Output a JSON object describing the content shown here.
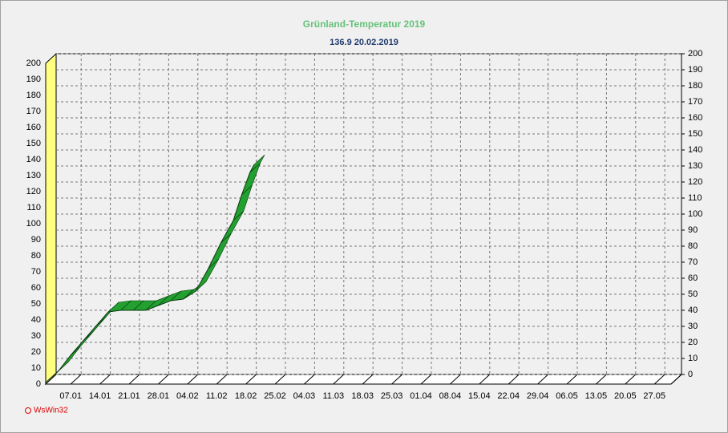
{
  "chart_data": {
    "type": "line",
    "title": "Grünland-Temperatur  2019",
    "subtitle": "136.9  20.02.2019",
    "footer": "WsWin32",
    "x": [
      "01.01",
      "04.01",
      "07.01",
      "10.01",
      "13.01",
      "16.01",
      "19.01",
      "22.01",
      "25.01",
      "28.01",
      "31.01",
      "03.02",
      "06.02",
      "09.02",
      "12.02",
      "15.02",
      "17.02",
      "19.02",
      "20.02"
    ],
    "series": [
      {
        "name": "Grünland-Temperatur",
        "color": "#22a030",
        "values": [
          1,
          8,
          18,
          27,
          36,
          45,
          46,
          46,
          46,
          49,
          52,
          53,
          58,
          72,
          88,
          102,
          118,
          132,
          136.9
        ]
      }
    ],
    "xlim": [
      "01.01",
      "31.05"
    ],
    "xticks": [
      "07.01",
      "14.01",
      "21.01",
      "28.01",
      "04.02",
      "11.02",
      "18.02",
      "25.02",
      "04.03",
      "11.03",
      "18.03",
      "25.03",
      "01.04",
      "08.04",
      "15.04",
      "22.04",
      "29.04",
      "06.05",
      "13.05",
      "20.05",
      "27.05"
    ],
    "ylim": [
      0,
      200
    ],
    "yticks": [
      0,
      10,
      20,
      30,
      40,
      50,
      60,
      70,
      80,
      90,
      100,
      110,
      120,
      130,
      140,
      150,
      160,
      170,
      180,
      190,
      200
    ],
    "grid": true
  }
}
